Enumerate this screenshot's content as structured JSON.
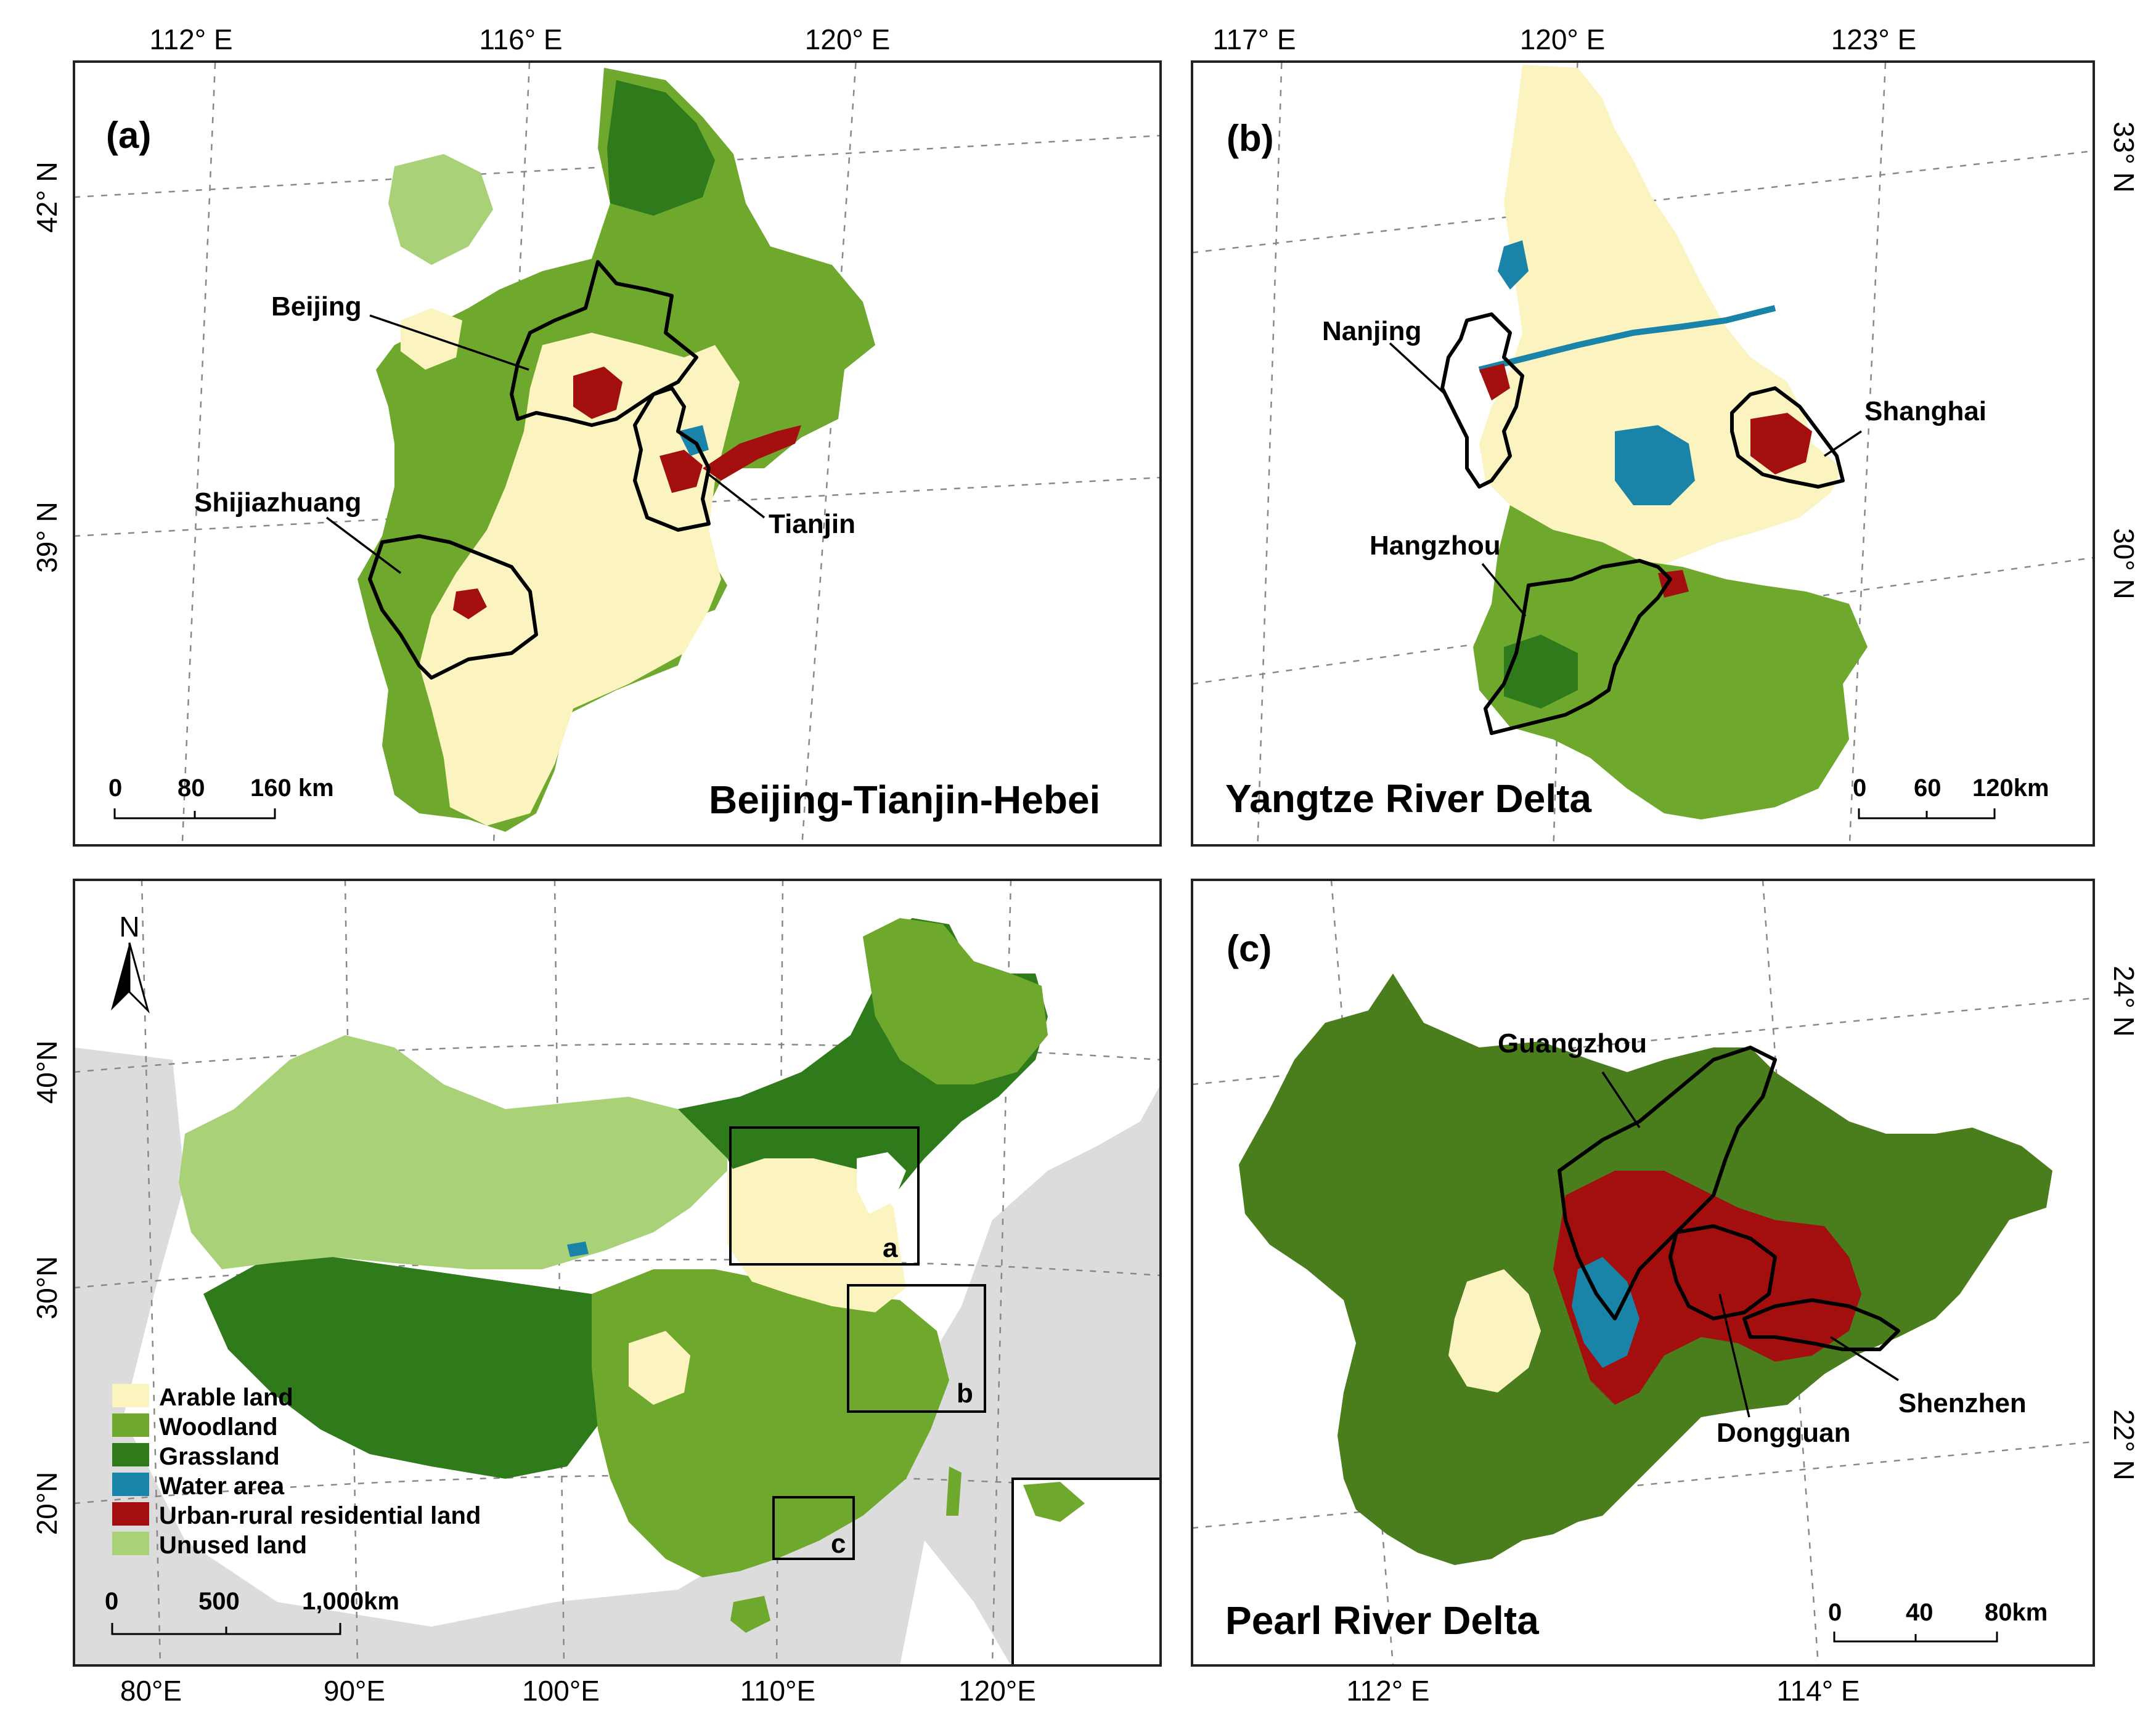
{
  "colors": {
    "arable": "#fbf4c0",
    "woodland": "#6ea82d",
    "grassland": "#2f7a1a",
    "water": "#1a83a8",
    "urban": "#a30f0f",
    "unused": "#a9d178",
    "background_land": "#dcdcdc"
  },
  "panel_a": {
    "letter": "(a)",
    "region_title": "Beijing-Tianjin-Hebei",
    "top_ticks": [
      "112° E",
      "116° E",
      "120° E"
    ],
    "left_ticks": [
      "42° N",
      "39° N"
    ],
    "cities": [
      "Beijing",
      "Tianjin",
      "Shijiazhuang"
    ],
    "scale": [
      "0",
      "80",
      "160 km"
    ]
  },
  "panel_b": {
    "letter": "(b)",
    "region_title": "Yangtze River Delta",
    "top_ticks": [
      "117° E",
      "120° E",
      "123° E"
    ],
    "right_ticks": [
      "33° N",
      "30° N"
    ],
    "cities": [
      "Nanjing",
      "Shanghai",
      "Hangzhou"
    ],
    "scale": [
      "0",
      "60",
      "120km"
    ]
  },
  "panel_c": {
    "letter": "(c)",
    "region_title": "Pearl River Delta",
    "bottom_ticks": [
      "112° E",
      "114° E"
    ],
    "right_ticks": [
      "24° N",
      "22° N"
    ],
    "cities": [
      "Guangzhou",
      "Dongguan",
      "Shenzhen"
    ],
    "scale": [
      "0",
      "40",
      "80km"
    ]
  },
  "panel_china": {
    "north_label": "N",
    "left_ticks": [
      "40°N",
      "30°N",
      "20°N"
    ],
    "bottom_ticks": [
      "80°E",
      "90°E",
      "100°E",
      "110°E",
      "120°E"
    ],
    "box_labels": [
      "a",
      "b",
      "c"
    ],
    "scale": [
      "0",
      "500",
      "1,000km"
    ],
    "legend": [
      {
        "label": "Arable land",
        "color_key": "arable"
      },
      {
        "label": "Woodland",
        "color_key": "woodland"
      },
      {
        "label": "Grassland",
        "color_key": "grassland"
      },
      {
        "label": "Water area",
        "color_key": "water"
      },
      {
        "label": "Urban-rural residential land",
        "color_key": "urban"
      },
      {
        "label": "Unused land",
        "color_key": "unused"
      }
    ]
  }
}
